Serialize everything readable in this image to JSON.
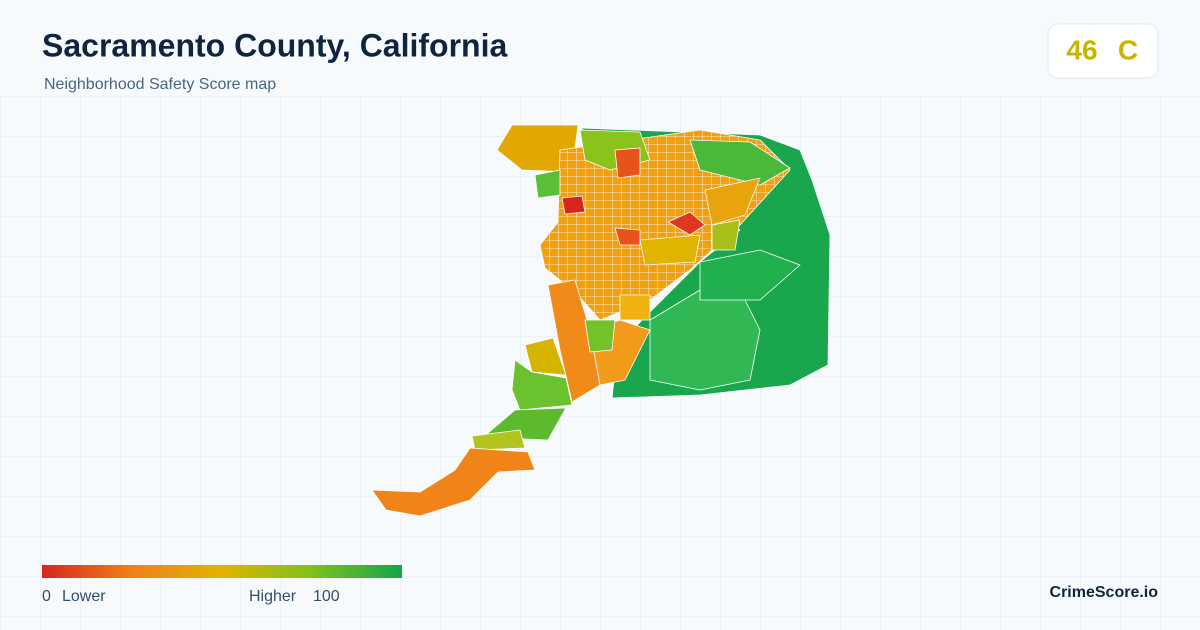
{
  "header": {
    "title": "Sacramento County, California",
    "subtitle": "Neighborhood Safety Score map"
  },
  "badge": {
    "score": "46",
    "grade": "C"
  },
  "legend": {
    "min": "0",
    "min_label": "Lower",
    "max_label": "Higher",
    "max": "100"
  },
  "footer": {
    "brand": "CrimeScore.io"
  }
}
